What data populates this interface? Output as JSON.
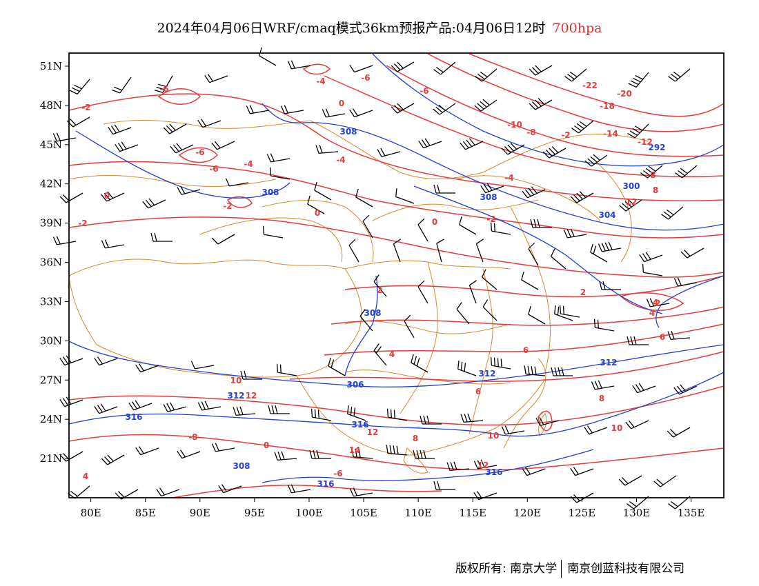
{
  "title": {
    "main": "2024年04月06日WRF/cmaq模式36km预报产品:04月06日12时",
    "level": "700hpa",
    "level_color": "#e03030"
  },
  "map": {
    "lon_range": [
      78,
      138
    ],
    "lat_range": [
      18,
      52
    ],
    "lat_ticks": [
      "51N",
      "48N",
      "45N",
      "42N",
      "39N",
      "36N",
      "33N",
      "30N",
      "27N",
      "24N",
      "21N"
    ],
    "lon_ticks": [
      "80E",
      "85E",
      "90E",
      "95E",
      "100E",
      "105E",
      "110E",
      "115E",
      "120E",
      "125E",
      "130E",
      "135E"
    ],
    "colors": {
      "temperature": "#e83a3a",
      "geopotential": "#1f3fd8",
      "boundary": "#d9862a",
      "wind": "#000000"
    },
    "height_labels": [
      "292",
      "300",
      "304",
      "308",
      "308",
      "308",
      "308",
      "312",
      "312",
      "312",
      "316",
      "316",
      "316",
      "316",
      "308",
      "306"
    ],
    "temperature_labels": [
      "-22",
      "-20",
      "-18",
      "-14",
      "-12",
      "-10",
      "-8",
      "-8",
      "-6",
      "-6",
      "-6",
      "-6",
      "-6",
      "-4",
      "-4",
      "-4",
      "-4",
      "-2",
      "-2",
      "-2",
      "-2",
      "-2",
      "0",
      "0",
      "0",
      "0",
      "2",
      "2",
      "4",
      "4",
      "4",
      "6",
      "6",
      "6",
      "8",
      "8",
      "10",
      "10",
      "10",
      "12",
      "12",
      "12",
      "14",
      "0",
      "-8",
      "-6",
      "4",
      "-2",
      "8",
      "12"
    ]
  },
  "copyright": {
    "left": "版权所有: 南京大学",
    "right": "南京创蓝科技有限公司"
  }
}
